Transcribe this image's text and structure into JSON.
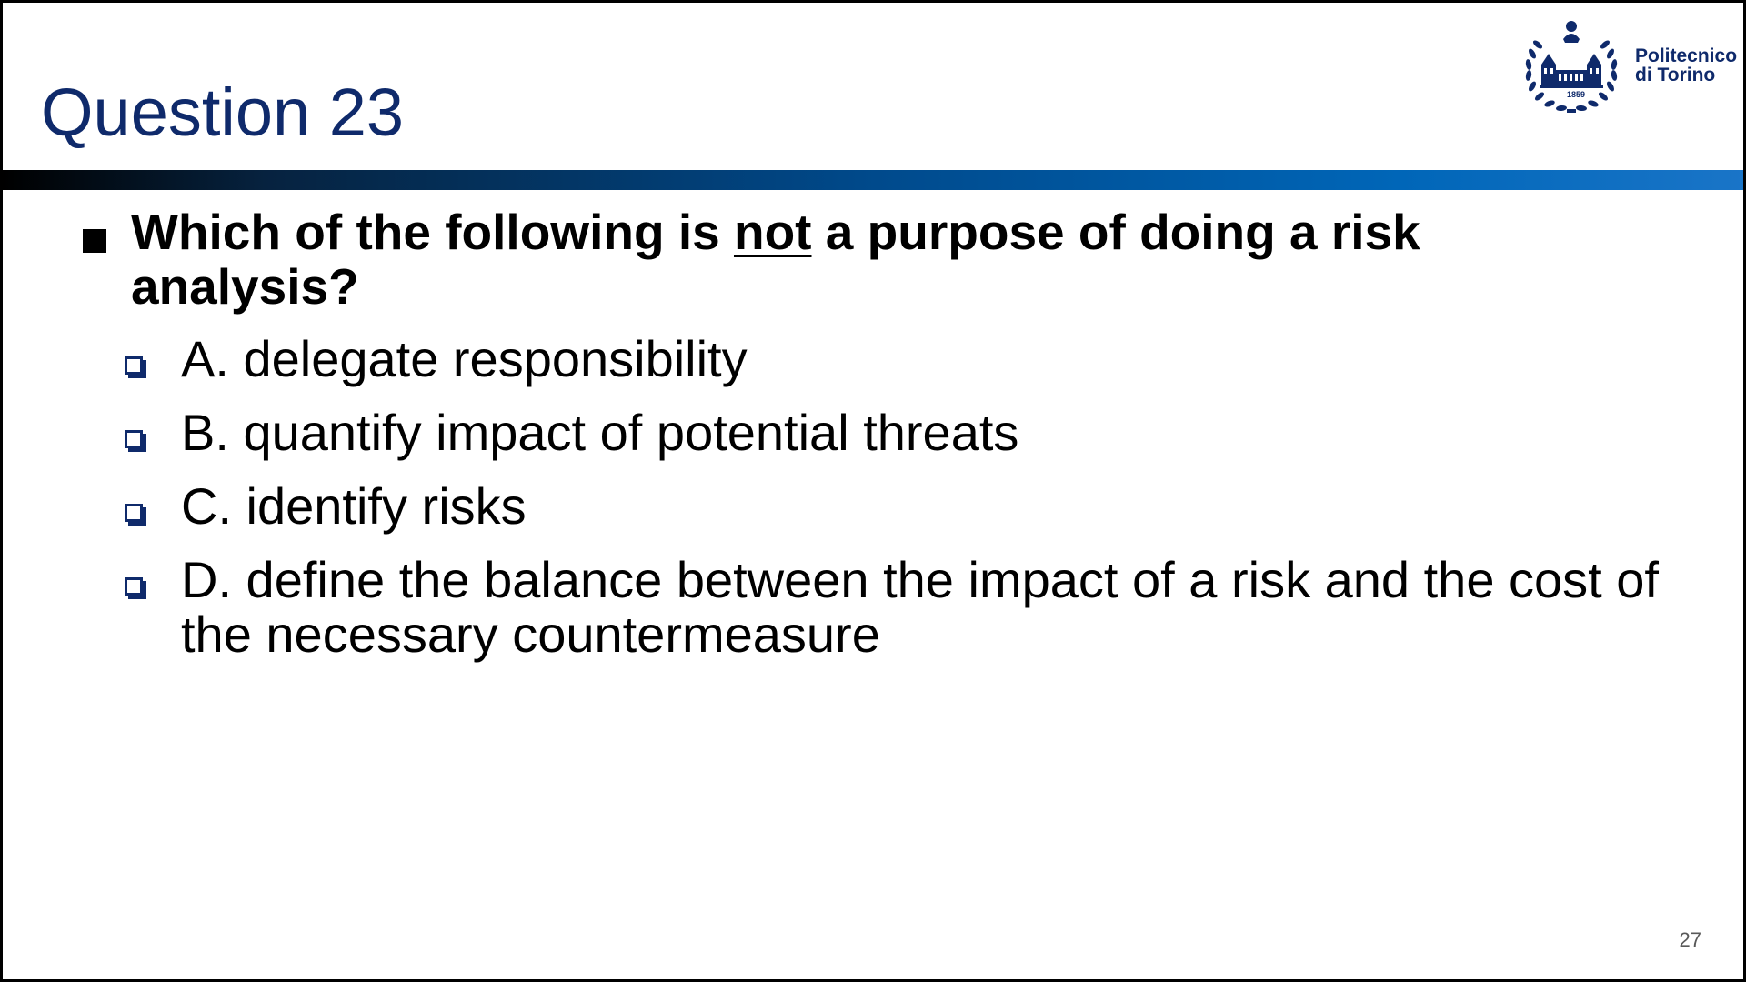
{
  "slide": {
    "title": "Question 23",
    "page_number": "27"
  },
  "logo": {
    "name_line1": "Politecnico",
    "name_line2": "di Torino",
    "year": "1859"
  },
  "question": {
    "text_before": "Which of the following is ",
    "emphasis": "not",
    "text_after": " a purpose of doing a risk analysis?"
  },
  "options": [
    {
      "label": "A. delegate responsibility"
    },
    {
      "label": "B. quantify impact of potential threats"
    },
    {
      "label": "C. identify risks"
    },
    {
      "label": "D. define the balance between the impact of a risk and the cost of the necessary countermeasure"
    }
  ],
  "colors": {
    "title": "#0f2a6b",
    "bar_start": "#000000",
    "bar_end": "#1a75c8",
    "checkbox": "#0f2a6b"
  }
}
